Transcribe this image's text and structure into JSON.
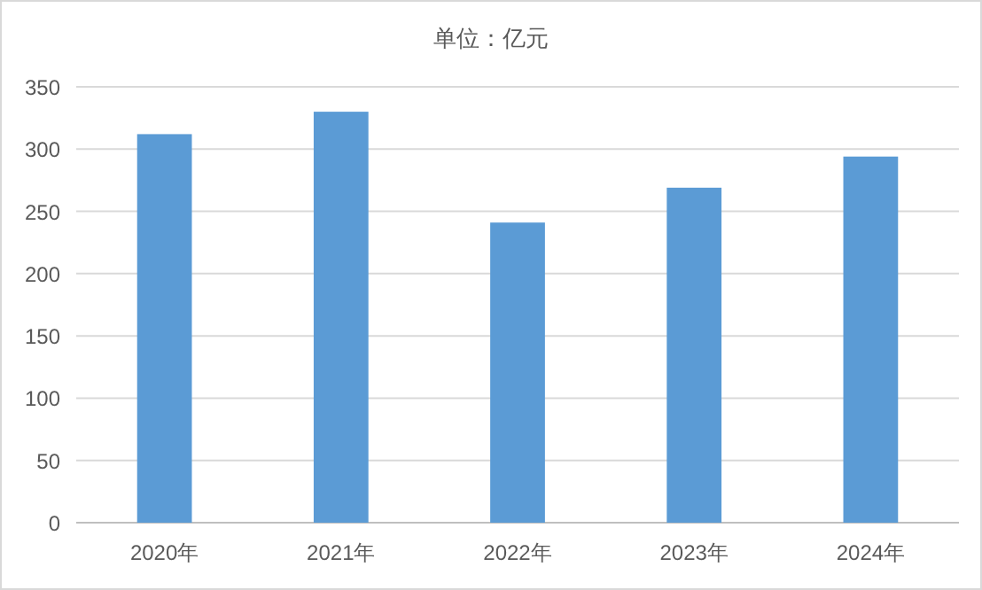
{
  "chart_data": {
    "type": "bar",
    "title": "单位：亿元",
    "categories": [
      "2020年",
      "2021年",
      "2022年",
      "2023年",
      "2024年"
    ],
    "values": [
      312,
      330,
      241,
      269,
      294
    ],
    "color": "#5b9bd5",
    "ylim": [
      0,
      350
    ],
    "yticks": [
      0,
      50,
      100,
      150,
      200,
      250,
      300,
      350
    ],
    "grid": "y",
    "legend": false
  }
}
